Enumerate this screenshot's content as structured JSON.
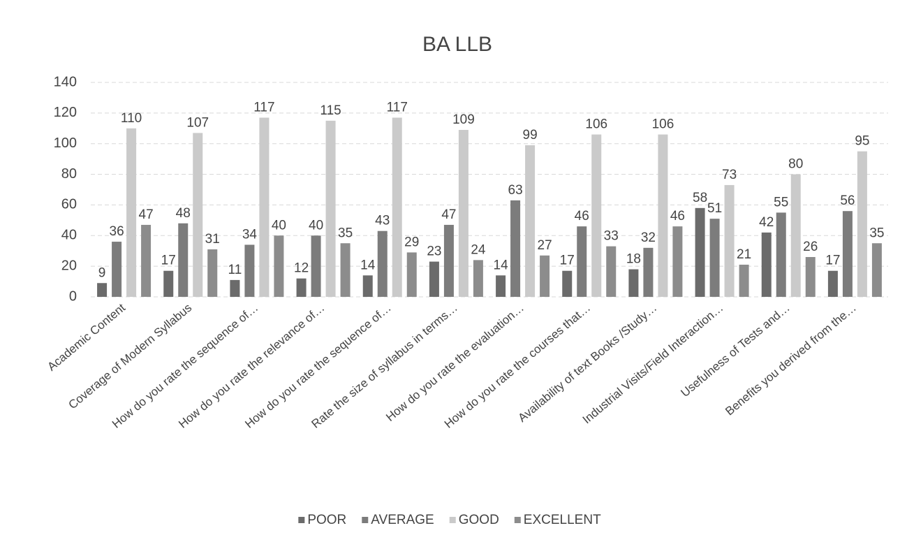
{
  "chart_data": {
    "type": "bar",
    "title": "BA LLB",
    "categories": [
      "Academic Content",
      "Coverage of Modern Syllabus",
      "How do you rate the sequence of…",
      "How do you rate the relevance of…",
      "How do you rate the sequence of…",
      "Rate the size of syllabus in terms…",
      "How do you rate the evaluation…",
      "How do you rate the courses that…",
      "Availability of text Books /Study…",
      "Industrial Visits/Field Interaction…",
      "Usefulness of Tests and…",
      "Benefits you derived from the…"
    ],
    "series": [
      {
        "name": "POOR",
        "color": "#6b6b6b",
        "values": [
          9,
          17,
          11,
          12,
          14,
          23,
          14,
          17,
          18,
          58,
          42,
          17
        ]
      },
      {
        "name": "AVERAGE",
        "color": "#7c7c7c",
        "values": [
          36,
          48,
          34,
          40,
          43,
          47,
          63,
          46,
          32,
          51,
          55,
          56
        ]
      },
      {
        "name": "GOOD",
        "color": "#cacaca",
        "values": [
          110,
          107,
          117,
          115,
          117,
          109,
          99,
          106,
          106,
          73,
          80,
          95
        ]
      },
      {
        "name": "EXCELLENT",
        "color": "#8c8c8c",
        "values": [
          47,
          31,
          40,
          35,
          29,
          24,
          27,
          33,
          46,
          21,
          26,
          35
        ]
      }
    ],
    "ylim": [
      0,
      140
    ],
    "yticks": [
      0,
      20,
      40,
      60,
      80,
      100,
      120,
      140
    ],
    "grid": true,
    "legend": "bottom"
  }
}
